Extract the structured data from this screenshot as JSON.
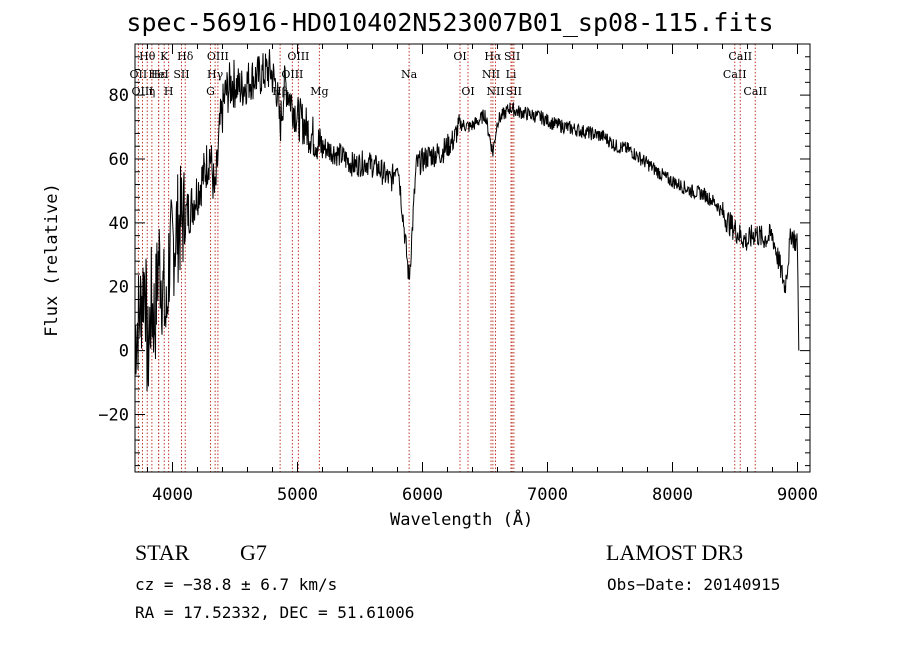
{
  "chart_data": {
    "type": "line",
    "title": "spec-56916-HD010402N523007B01_sp08-115.fits",
    "xlabel": "Wavelength (Å)",
    "ylabel": "Flux (relative)",
    "xlim": [
      3700,
      9100
    ],
    "ylim": [
      -38,
      96
    ],
    "x_ticks": [
      4000,
      5000,
      6000,
      7000,
      8000,
      9000
    ],
    "y_ticks": [
      -20,
      0,
      20,
      40,
      60,
      80
    ],
    "series": [
      {
        "name": "flux",
        "x": [
          3700,
          3740,
          3780,
          3800,
          3830,
          3860,
          3890,
          3920,
          3950,
          3970,
          4000,
          4030,
          4060,
          4100,
          4150,
          4200,
          4250,
          4300,
          4340,
          4380,
          4420,
          4480,
          4550,
          4620,
          4700,
          4780,
          4830,
          4861,
          4900,
          4960,
          5000,
          5050,
          5100,
          5150,
          5180,
          5250,
          5350,
          5450,
          5550,
          5650,
          5750,
          5800,
          5893,
          5950,
          6050,
          6150,
          6250,
          6300,
          6380,
          6450,
          6500,
          6563,
          6600,
          6650,
          6700,
          6750,
          6850,
          6950,
          7050,
          7150,
          7250,
          7350,
          7450,
          7550,
          7650,
          7750,
          7850,
          7950,
          8050,
          8150,
          8250,
          8350,
          8450,
          8498,
          8542,
          8600,
          8662,
          8720,
          8800,
          8850,
          8900,
          8950,
          9000,
          9010
        ],
        "y": [
          5,
          12,
          25,
          -5,
          15,
          10,
          30,
          20,
          8,
          28,
          32,
          38,
          40,
          42,
          45,
          50,
          55,
          62,
          48,
          70,
          80,
          84,
          82,
          85,
          86,
          88,
          83,
          70,
          84,
          77,
          73,
          71,
          68,
          66,
          64,
          63,
          61,
          58,
          59,
          57,
          53,
          60,
          22,
          58,
          61,
          62,
          66,
          71,
          70,
          72,
          74,
          62,
          72,
          74,
          76,
          75,
          74,
          73,
          71,
          70,
          69,
          68,
          67,
          64,
          63,
          60,
          57,
          54,
          52,
          50,
          49,
          46,
          40,
          38,
          36,
          34,
          37,
          35,
          36,
          28,
          20,
          37,
          33,
          0
        ]
      }
    ],
    "lines": [
      {
        "label": "Hθ",
        "wave": 3798,
        "row": 1
      },
      {
        "label": "OII",
        "wave": 3727,
        "row": 2
      },
      {
        "label": "OIII",
        "wave": 3760,
        "row": 3
      },
      {
        "label": "Hε",
        "wave": 3889,
        "row": 2
      },
      {
        "label": "HeI",
        "wave": 3889,
        "row": 2
      },
      {
        "label": "η",
        "wave": 3835,
        "row": 3
      },
      {
        "label": "K",
        "wave": 3934,
        "row": 1
      },
      {
        "label": "H",
        "wave": 3969,
        "row": 3
      },
      {
        "label": "SII",
        "wave": 4072,
        "row": 2
      },
      {
        "label": "Hδ",
        "wave": 4102,
        "row": 1
      },
      {
        "label": "OIII",
        "wave": 4363,
        "row": 1
      },
      {
        "label": "Hγ",
        "wave": 4341,
        "row": 2
      },
      {
        "label": "G",
        "wave": 4304,
        "row": 3
      },
      {
        "label": "Hβ",
        "wave": 4861,
        "row": 3
      },
      {
        "label": "OIII",
        "wave": 4959,
        "row": 2
      },
      {
        "label": "OIII",
        "wave": 5007,
        "row": 1
      },
      {
        "label": "Mg",
        "wave": 5175,
        "row": 3
      },
      {
        "label": "Na",
        "wave": 5893,
        "row": 2
      },
      {
        "label": "OI",
        "wave": 6300,
        "row": 1
      },
      {
        "label": "OI",
        "wave": 6364,
        "row": 3
      },
      {
        "label": "Hα",
        "wave": 6563,
        "row": 1
      },
      {
        "label": "NII",
        "wave": 6548,
        "row": 2
      },
      {
        "label": "NII",
        "wave": 6584,
        "row": 3
      },
      {
        "label": "Li",
        "wave": 6708,
        "row": 2
      },
      {
        "label": "SII",
        "wave": 6717,
        "row": 1
      },
      {
        "label": "SII",
        "wave": 6731,
        "row": 3
      },
      {
        "label": "CaII",
        "wave": 8498,
        "row": 2
      },
      {
        "label": "CaII",
        "wave": 8542,
        "row": 1
      },
      {
        "label": "CaII",
        "wave": 8662,
        "row": 3
      }
    ]
  },
  "info": {
    "object_class": "STAR",
    "subclass": "G7",
    "survey": "LAMOST DR3",
    "cz_line": "cz = −38.8 ± 6.7 km/s",
    "obs_date": "Obs−Date: 20140915",
    "coords": "RA =  17.52332, DEC =  51.61006"
  }
}
